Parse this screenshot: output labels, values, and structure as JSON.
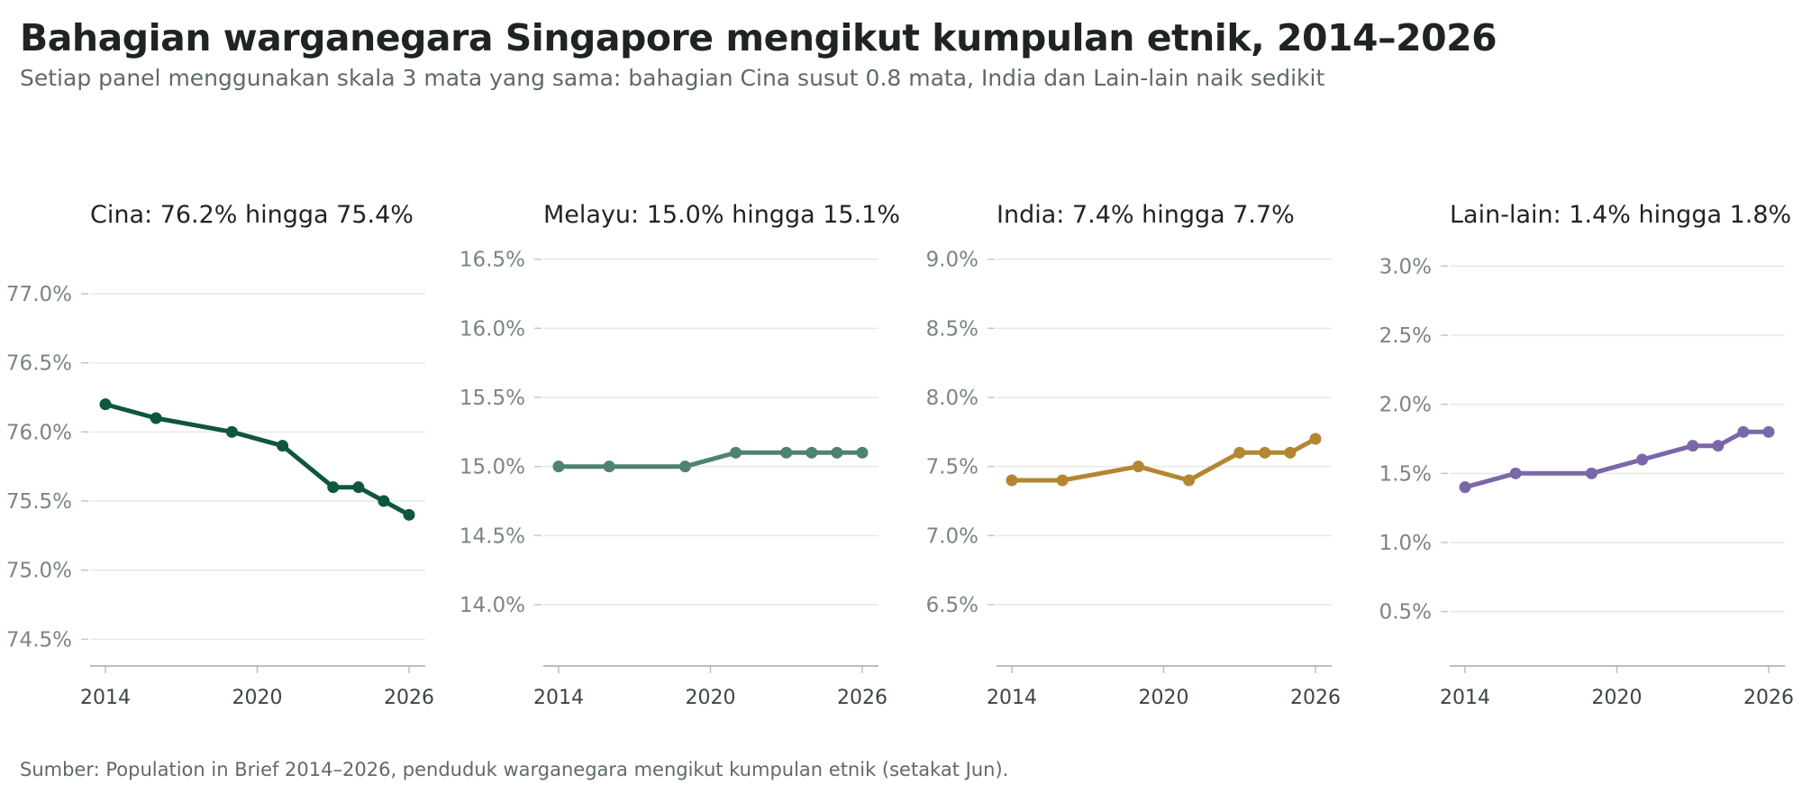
{
  "title": "Bahagian warganegara Singapore mengikut kumpulan etnik, 2014–2026",
  "subtitle": "Setiap panel menggunakan skala 3 mata yang sama: bahagian Cina susut 0.8 mata, India dan Lain-lain naik sedikit",
  "source": "Sumber: Population in Brief 2014–2026, penduduk warganegara mengikut kumpulan etnik (setakat Jun).",
  "chart_data": [
    {
      "type": "line",
      "title": "Cina: 76.2% hingga 75.4%",
      "color": "#0e5640",
      "x": [
        2014,
        2016,
        2019,
        2021,
        2023,
        2024,
        2025,
        2026
      ],
      "values": [
        76.2,
        76.1,
        76.0,
        75.9,
        75.6,
        75.6,
        75.5,
        75.4
      ],
      "ylim": [
        74.3,
        77.3
      ],
      "yticks": [
        74.5,
        75.0,
        75.5,
        76.0,
        76.5,
        77.0
      ],
      "xticks": [
        2014,
        2020,
        2026
      ],
      "grid": true
    },
    {
      "type": "line",
      "title": "Melayu: 15.0% hingga 15.1%",
      "color": "#4e8370",
      "x": [
        2014,
        2016,
        2019,
        2021,
        2023,
        2024,
        2025,
        2026
      ],
      "values": [
        15.0,
        15.0,
        15.0,
        15.1,
        15.1,
        15.1,
        15.1,
        15.1
      ],
      "ylim": [
        13.55,
        16.55
      ],
      "yticks": [
        14.0,
        14.5,
        15.0,
        15.5,
        16.0,
        16.5
      ],
      "xticks": [
        2014,
        2020,
        2026
      ],
      "grid": true
    },
    {
      "type": "line",
      "title": "India: 7.4% hingga 7.7%",
      "color": "#b38632",
      "x": [
        2014,
        2016,
        2019,
        2021,
        2023,
        2024,
        2025,
        2026
      ],
      "values": [
        7.4,
        7.4,
        7.5,
        7.4,
        7.6,
        7.6,
        7.6,
        7.7
      ],
      "ylim": [
        6.05,
        9.05
      ],
      "yticks": [
        6.5,
        7.0,
        7.5,
        8.0,
        8.5,
        9.0
      ],
      "xticks": [
        2014,
        2020,
        2026
      ],
      "grid": true
    },
    {
      "type": "line",
      "title": "Lain-lain: 1.4% hingga 1.8%",
      "color": "#7a67a8",
      "x": [
        2014,
        2016,
        2019,
        2021,
        2023,
        2024,
        2025,
        2026
      ],
      "values": [
        1.4,
        1.5,
        1.5,
        1.6,
        1.7,
        1.7,
        1.8,
        1.8
      ],
      "ylim": [
        0.1,
        3.1
      ],
      "yticks": [
        0.5,
        1.0,
        1.5,
        2.0,
        2.5,
        3.0
      ],
      "xticks": [
        2014,
        2020,
        2026
      ],
      "grid": true
    }
  ]
}
